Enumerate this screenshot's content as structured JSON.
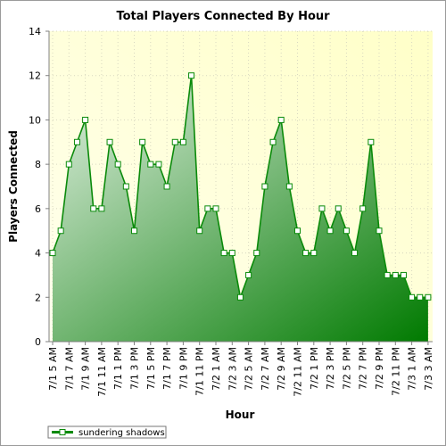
{
  "chart_data": {
    "type": "area",
    "title": "Total Players Connected By Hour",
    "xlabel": "Hour",
    "ylabel": "Players Connected",
    "ylim": [
      0,
      14
    ],
    "yticks": [
      0,
      2,
      4,
      6,
      8,
      10,
      12,
      14
    ],
    "grid": true,
    "legend_placement": "bottom-left",
    "colors": {
      "line": "#0a8a0a",
      "fill_light": "#e4f1e4",
      "fill_dark": "#007a00",
      "plot_bg_light": "#ffffee",
      "plot_bg_dark": "#ffffc8",
      "marker_fill": "#ffffff"
    },
    "x_labels": [
      "7/1 5 AM",
      "7/1 7 AM",
      "7/1 9 AM",
      "7/1 11 AM",
      "7/1 1 PM",
      "7/1 3 PM",
      "7/1 5 PM",
      "7/1 7 PM",
      "7/1 9 PM",
      "7/1 11 PM",
      "7/2 1 AM",
      "7/2 3 AM",
      "7/2 5 AM",
      "7/2 7 AM",
      "7/2 9 AM",
      "7/2 11 AM",
      "7/2 1 PM",
      "7/2 3 PM",
      "7/2 5 PM",
      "7/2 7 PM",
      "7/2 9 PM",
      "7/2 11 PM",
      "7/3 1 AM",
      "7/3 3 AM"
    ],
    "series": [
      {
        "name": "sundering shadows",
        "values": [
          4,
          5,
          8,
          9,
          10,
          6,
          6,
          9,
          8,
          7,
          5,
          9,
          8,
          8,
          7,
          9,
          9,
          12,
          5,
          6,
          6,
          4,
          4,
          2,
          3,
          4,
          7,
          9,
          10,
          7,
          5,
          4,
          4,
          6,
          5,
          6,
          5,
          4,
          6,
          9,
          5,
          3,
          3,
          3,
          2,
          2,
          2
        ]
      }
    ]
  }
}
